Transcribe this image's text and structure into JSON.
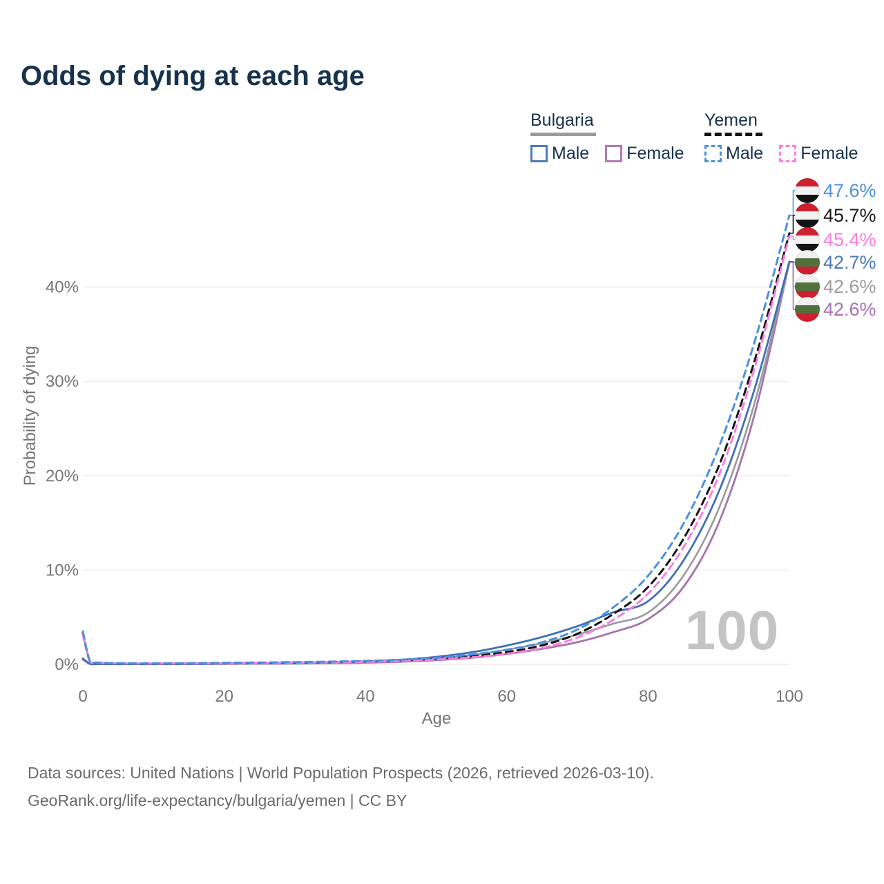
{
  "title": "Odds of dying at each age",
  "legend": {
    "groups": [
      {
        "country": "Bulgaria",
        "line_style": "solid",
        "underline_color": "#9b9b9b",
        "items": [
          {
            "label": "Male",
            "color": "#4b7cba"
          },
          {
            "label": "Female",
            "color": "#b678b6"
          }
        ]
      },
      {
        "country": "Yemen",
        "line_style": "dashed",
        "underline_color": "#141414",
        "items": [
          {
            "label": "Male",
            "color": "#4a90e2"
          },
          {
            "label": "Female",
            "color": "#ff80df"
          }
        ]
      }
    ]
  },
  "end_labels": [
    {
      "series": "Yemen Male",
      "value": "47.6%",
      "color": "#4a90e2",
      "flag": "yemen"
    },
    {
      "series": "Yemen All",
      "value": "45.7%",
      "color": "#1c1c1c",
      "flag": "yemen"
    },
    {
      "series": "Yemen Female",
      "value": "45.4%",
      "color": "#ff7bdf",
      "flag": "yemen"
    },
    {
      "series": "Bulgaria Male",
      "value": "42.7%",
      "color": "#4a7abc",
      "flag": "bulgaria"
    },
    {
      "series": "Bulgaria All",
      "value": "42.6%",
      "color": "#9e9e9e",
      "flag": "bulgaria"
    },
    {
      "series": "Bulgaria Female",
      "value": "42.6%",
      "color": "#a873b3",
      "flag": "bulgaria"
    }
  ],
  "watermark": "100",
  "chart_data": {
    "type": "line",
    "title": "Odds of dying at each age",
    "xlabel": "Age",
    "ylabel": "Probability of dying",
    "x_ticks": [
      0,
      20,
      40,
      60,
      80,
      100
    ],
    "y_ticks": [
      0,
      10,
      20,
      30,
      40
    ],
    "y_tick_suffix": "%",
    "xlim": [
      0,
      100
    ],
    "ylim_percent": [
      0,
      48
    ],
    "grid": "horizontal",
    "legend_position": "top-right",
    "ages": [
      0,
      1,
      2,
      5,
      10,
      15,
      20,
      25,
      30,
      35,
      40,
      45,
      50,
      55,
      60,
      65,
      70,
      75,
      80,
      85,
      90,
      95,
      100
    ],
    "series": [
      {
        "name": "Bulgaria Female",
        "country": "Bulgaria",
        "sex": "Female",
        "style": "solid",
        "color": "#a572ad",
        "width": 2.8,
        "values": [
          0.53,
          0.05,
          0.03,
          0.025,
          0.024,
          0.035,
          0.05,
          0.07,
          0.09,
          0.12,
          0.18,
          0.28,
          0.45,
          0.7,
          1.1,
          1.65,
          2.35,
          3.4,
          4.8,
          8.2,
          15.0,
          26.3,
          42.6
        ]
      },
      {
        "name": "Bulgaria All",
        "country": "Bulgaria",
        "sex": "Both",
        "style": "solid",
        "color": "#9a9a9a",
        "width": 2.6,
        "values": [
          0.58,
          0.055,
          0.035,
          0.028,
          0.027,
          0.042,
          0.065,
          0.09,
          0.12,
          0.16,
          0.24,
          0.38,
          0.62,
          0.98,
          1.55,
          2.25,
          3.15,
          4.3,
          5.5,
          9.4,
          16.5,
          27.5,
          42.6
        ]
      },
      {
        "name": "Bulgaria Male",
        "country": "Bulgaria",
        "sex": "Male",
        "style": "solid",
        "color": "#3f6fb5",
        "width": 2.8,
        "values": [
          0.62,
          0.06,
          0.04,
          0.03,
          0.03,
          0.05,
          0.08,
          0.11,
          0.14,
          0.2,
          0.3,
          0.48,
          0.8,
          1.28,
          2.0,
          2.9,
          4.05,
          5.5,
          6.7,
          11.0,
          18.3,
          29.0,
          42.7
        ]
      },
      {
        "name": "Yemen All",
        "country": "Yemen",
        "sex": "Both",
        "style": "dashed",
        "color": "#141414",
        "width": 3.0,
        "values": [
          3.3,
          0.32,
          0.18,
          0.11,
          0.09,
          0.11,
          0.14,
          0.17,
          0.21,
          0.25,
          0.32,
          0.43,
          0.6,
          0.88,
          1.32,
          2.02,
          3.25,
          5.3,
          8.2,
          13.3,
          21.0,
          32.0,
          45.7
        ]
      },
      {
        "name": "Yemen Female",
        "country": "Yemen",
        "sex": "Female",
        "style": "dashed",
        "color": "#ff7bdf",
        "width": 3.0,
        "values": [
          3.1,
          0.3,
          0.17,
          0.1,
          0.08,
          0.1,
          0.12,
          0.15,
          0.18,
          0.22,
          0.28,
          0.37,
          0.52,
          0.75,
          1.12,
          1.75,
          2.85,
          4.7,
          7.5,
          12.4,
          20.0,
          31.2,
          45.4
        ]
      },
      {
        "name": "Yemen Male",
        "country": "Yemen",
        "sex": "Male",
        "style": "dashed",
        "color": "#4a90e2",
        "width": 3.0,
        "values": [
          3.5,
          0.35,
          0.2,
          0.12,
          0.1,
          0.13,
          0.17,
          0.2,
          0.24,
          0.29,
          0.37,
          0.5,
          0.7,
          1.05,
          1.55,
          2.35,
          3.7,
          6.0,
          9.4,
          14.9,
          23.0,
          34.0,
          47.6
        ]
      }
    ]
  },
  "footer": {
    "line1": "Data sources: United Nations | World Population Prospects (2026, retrieved 2026-03-10).",
    "line2": "GeoRank.org/life-expectancy/bulgaria/yemen | CC BY"
  }
}
